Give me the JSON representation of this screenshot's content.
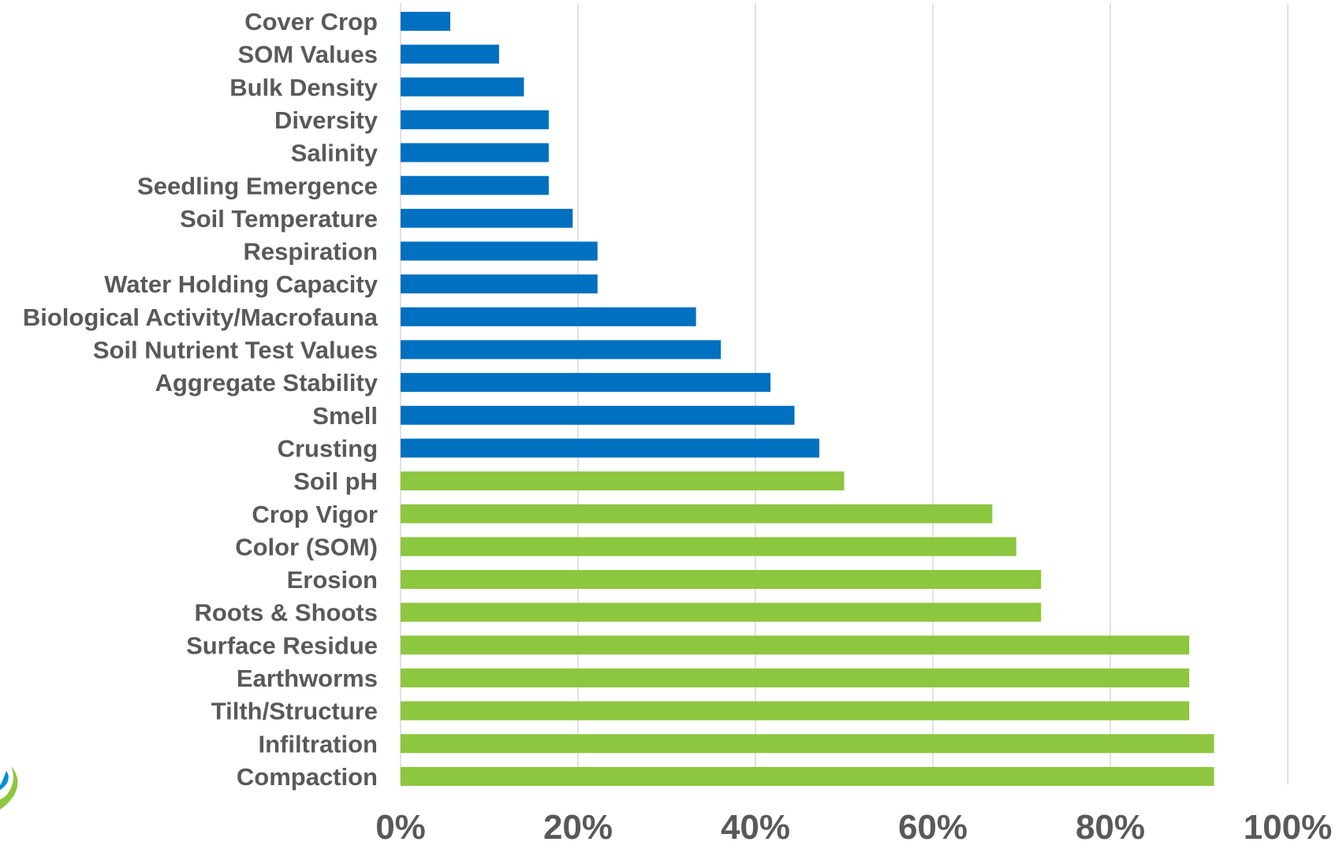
{
  "chart_data": {
    "type": "bar",
    "orientation": "horizontal",
    "title": "",
    "xlabel": "",
    "ylabel": "",
    "xlim": [
      0,
      100
    ],
    "grid": "vertical gridlines",
    "legend": "none",
    "x_ticks": [
      "0%",
      "20%",
      "40%",
      "60%",
      "80%",
      "100%"
    ],
    "categories": [
      "Cover Crop",
      "SOM Values",
      "Bulk Density",
      "Diversity",
      "Salinity",
      "Seedling Emergence",
      "Soil Temperature",
      "Respiration",
      "Water Holding Capacity",
      "Biological Activity/Macrofauna",
      "Soil Nutrient Test Values",
      "Aggregate Stability",
      "Smell",
      "Crusting",
      "Soil pH",
      "Crop Vigor",
      "Color (SOM)",
      "Erosion",
      "Roots & Shoots",
      "Surface Residue",
      "Earthworms",
      "Tilth/Structure",
      "Infiltration",
      "Compaction"
    ],
    "values": [
      5.6,
      11.1,
      13.9,
      16.7,
      16.7,
      16.7,
      19.4,
      22.2,
      22.2,
      33.3,
      36.1,
      41.7,
      44.4,
      47.2,
      50.0,
      66.7,
      69.4,
      72.2,
      72.2,
      88.9,
      88.9,
      88.9,
      91.7,
      91.7
    ],
    "colors": {
      "below_50": "#0070c0",
      "at_or_above_50": "#8dc63f",
      "label_text": "#595959",
      "gridline": "#d9d9d9"
    },
    "bar_color_group": [
      "blue",
      "blue",
      "blue",
      "blue",
      "blue",
      "blue",
      "blue",
      "blue",
      "blue",
      "blue",
      "blue",
      "blue",
      "blue",
      "blue",
      "green",
      "green",
      "green",
      "green",
      "green",
      "green",
      "green",
      "green",
      "green",
      "green"
    ]
  },
  "logo": {
    "icon": "partial-logo-icon"
  }
}
